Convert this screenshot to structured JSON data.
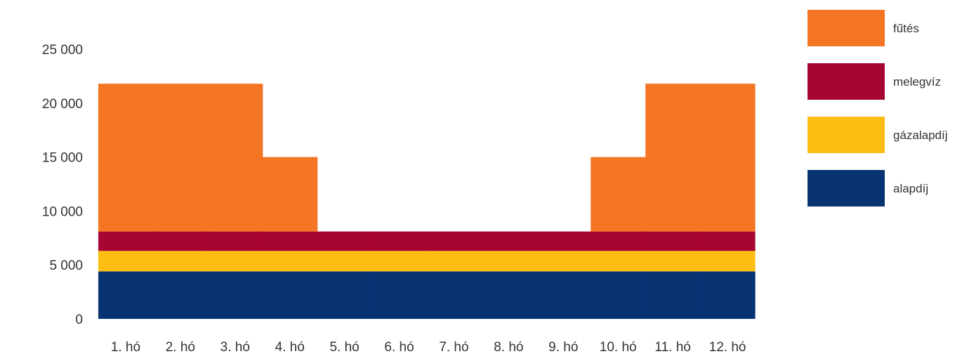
{
  "chart_data": {
    "type": "bar",
    "stacked": true,
    "categories": [
      "1. hó",
      "2. hó",
      "3. hó",
      "4. hó",
      "5. hó",
      "6. hó",
      "7. hó",
      "8. hó",
      "9. hó",
      "10. hó",
      "11. hó",
      "12. hó"
    ],
    "series": [
      {
        "name": "alapdíj",
        "color": "#073373",
        "values": [
          4400,
          4400,
          4400,
          4400,
          4400,
          4400,
          4400,
          4400,
          4400,
          4400,
          4400,
          4400
        ]
      },
      {
        "name": "gázalapdíj",
        "color": "#fcbe13",
        "values": [
          1900,
          1900,
          1900,
          1900,
          1900,
          1900,
          1900,
          1900,
          1900,
          1900,
          1900,
          1900
        ]
      },
      {
        "name": "melegvíz",
        "color": "#a70532",
        "values": [
          1800,
          1800,
          1800,
          1800,
          1800,
          1800,
          1800,
          1800,
          1800,
          1800,
          1800,
          1800
        ]
      },
      {
        "name": "fűtés",
        "color": "#f47524",
        "values": [
          13700,
          13700,
          13700,
          6900,
          0,
          0,
          0,
          0,
          0,
          6900,
          13700,
          13700
        ]
      }
    ],
    "yticks": [
      "0",
      "5 000",
      "10 000",
      "15 000",
      "20 000",
      "25 000"
    ],
    "ytick_values": [
      0,
      5000,
      10000,
      15000,
      20000,
      25000
    ],
    "ylim": [
      0,
      25000
    ],
    "legend_position": "right",
    "legend_order": [
      "fűtés",
      "melegvíz",
      "gázalapdíj",
      "alapdíj"
    ],
    "bar_gap": 0,
    "grid": false
  }
}
